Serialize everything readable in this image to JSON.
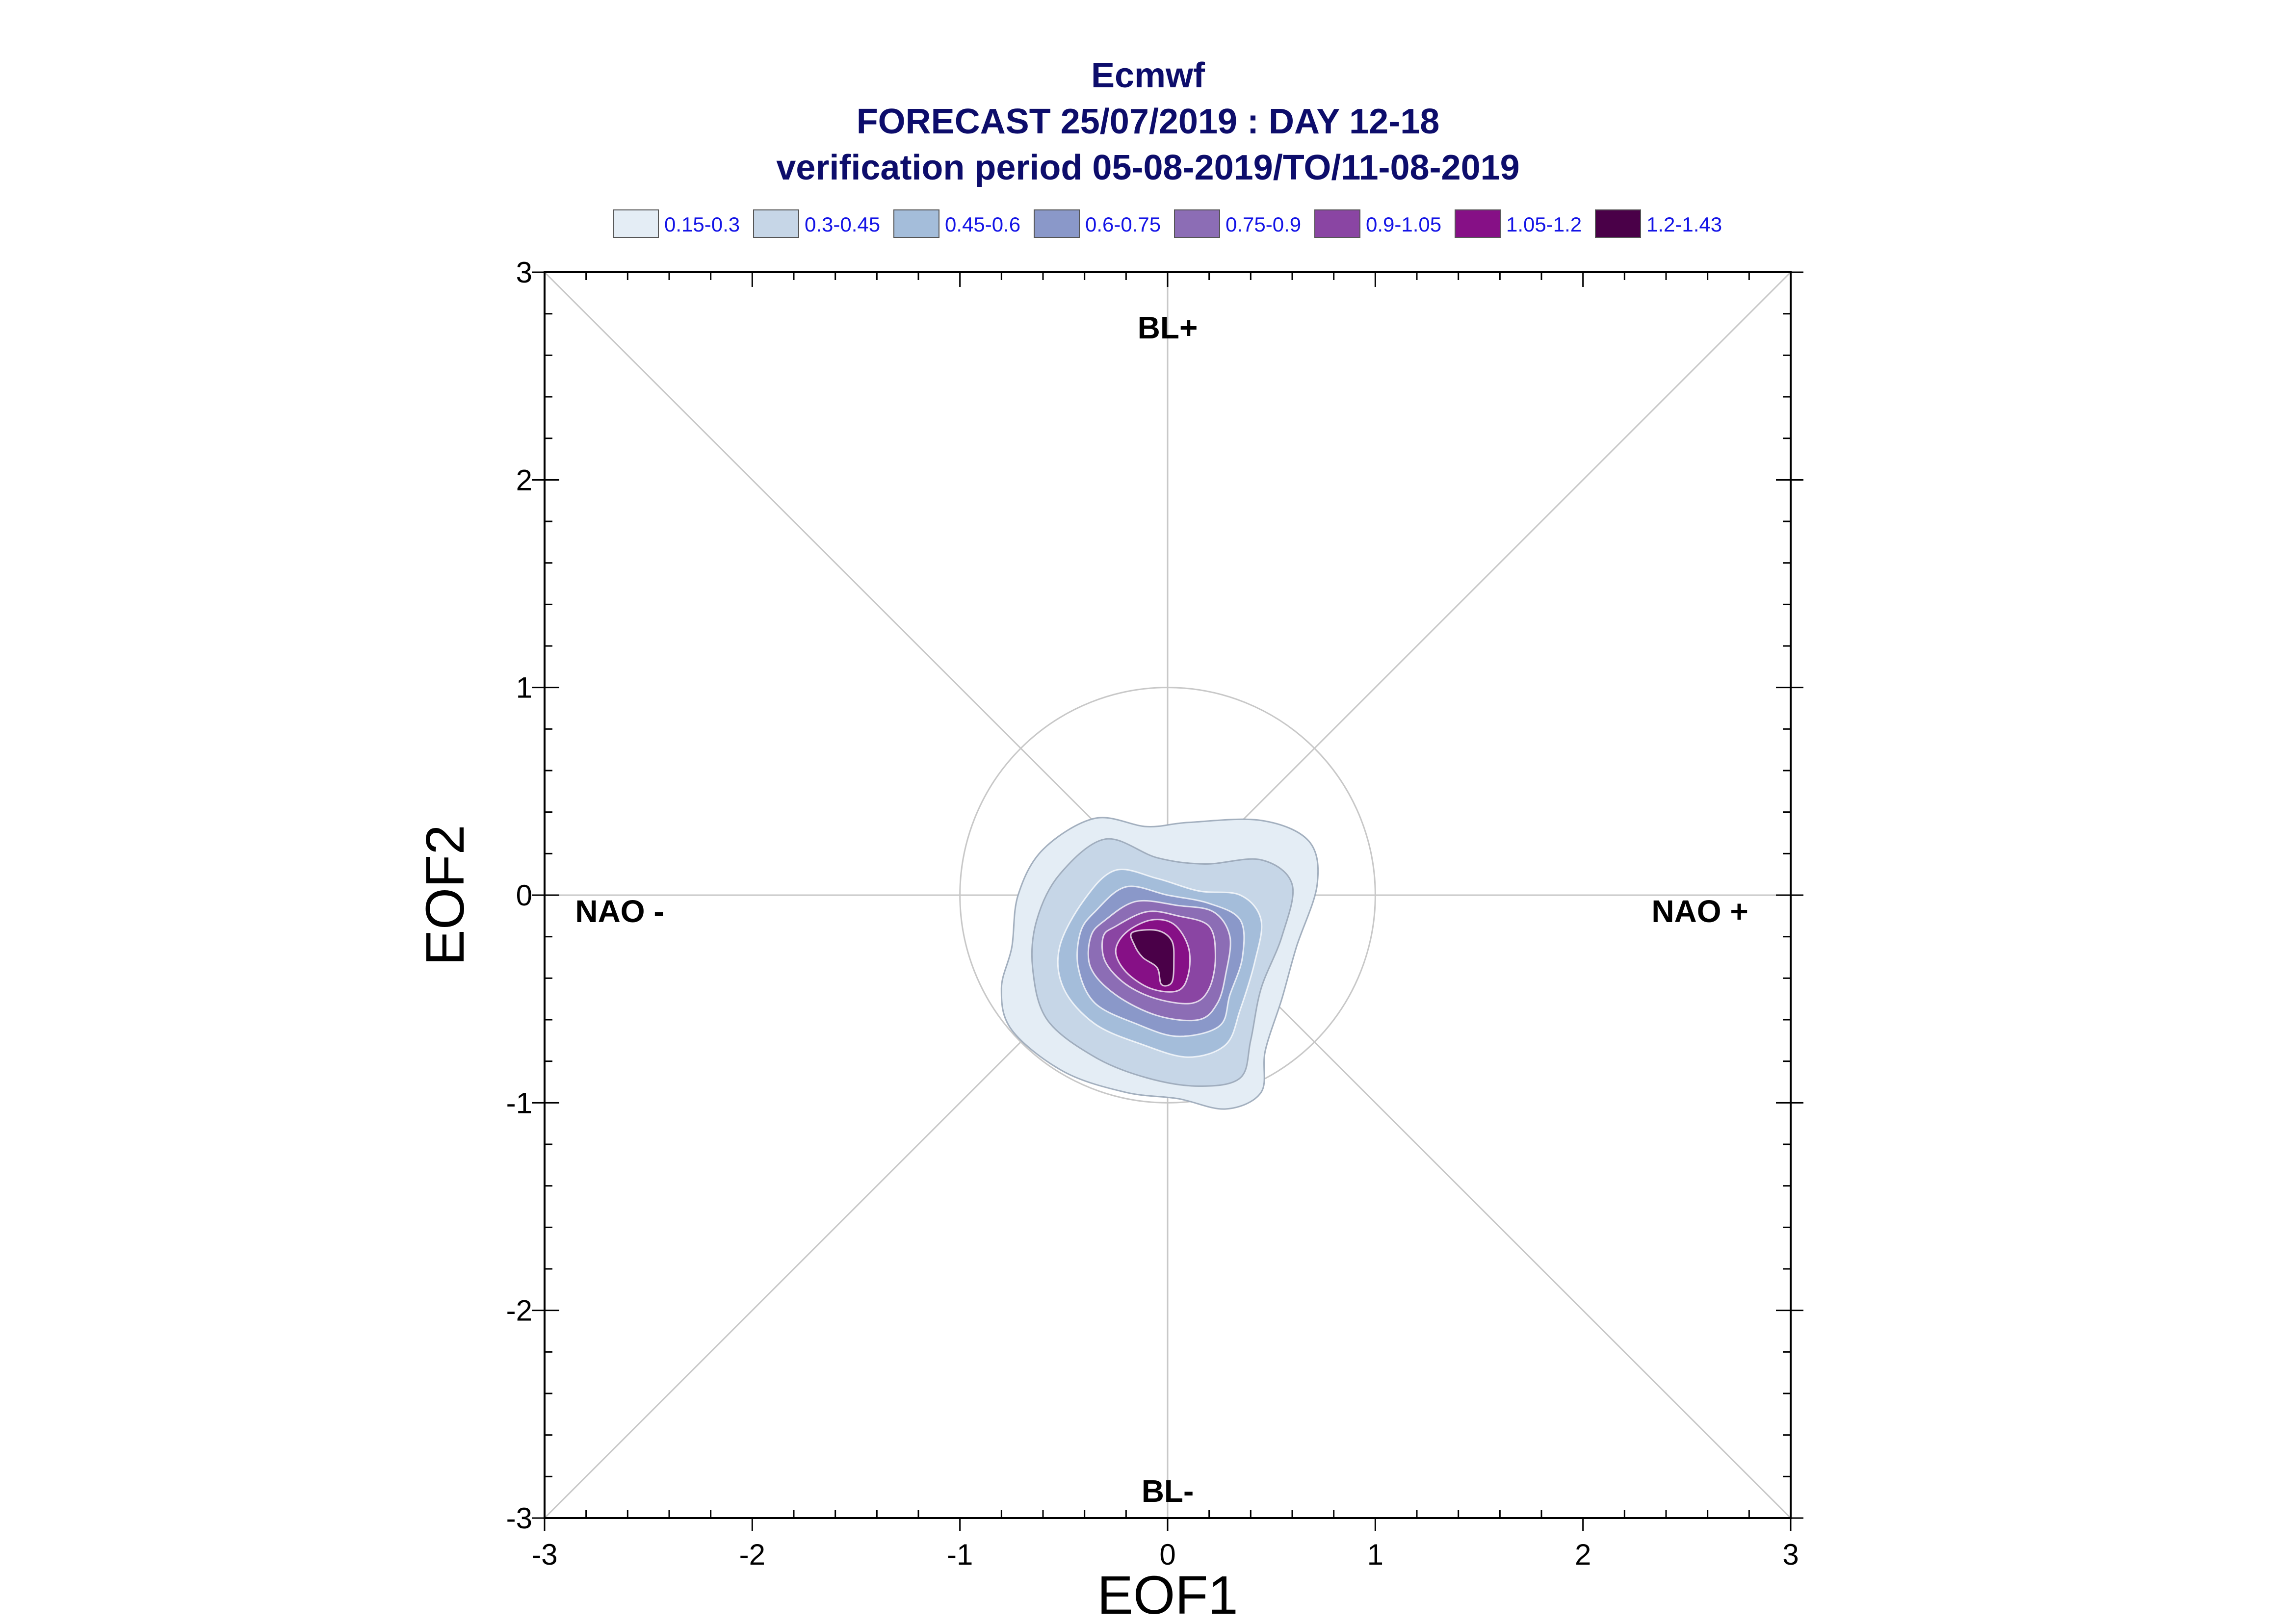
{
  "chart_data": {
    "type": "contour",
    "title": "Ecmwf",
    "subtitle": "FORECAST 25/07/2019 : DAY 12-18",
    "subtitle2": "verification period 05-08-2019/TO/11-08-2019",
    "xlabel": "EOF1",
    "ylabel": "EOF2",
    "xlim": [
      -3,
      3
    ],
    "ylim": [
      -3,
      3
    ],
    "xticks": [
      "-3",
      "-2",
      "-1",
      "0",
      "1",
      "2",
      "3"
    ],
    "yticks": [
      "3",
      "2",
      "1",
      "0",
      "-1",
      "-2",
      "-3"
    ],
    "regimes": {
      "top": "BL+",
      "bottom": "BL-",
      "left": "NAO -",
      "right": "NAO +"
    },
    "unit_circle_radius": 1,
    "legend": [
      {
        "label": "0.15-0.3",
        "color": "#e4edf5"
      },
      {
        "label": "0.3-0.45",
        "color": "#c6d6e7"
      },
      {
        "label": "0.45-0.6",
        "color": "#a4bdda"
      },
      {
        "label": "0.6-0.75",
        "color": "#8a98c9"
      },
      {
        "label": "0.75-0.9",
        "color": "#8c6db5"
      },
      {
        "label": "0.9-1.05",
        "color": "#8a45a3"
      },
      {
        "label": "1.05-1.2",
        "color": "#861086"
      },
      {
        "label": "1.2-1.43",
        "color": "#4a0048"
      }
    ],
    "contours": [
      {
        "level": "0.15-0.3",
        "points": [
          [
            -0.6,
            0.22
          ],
          [
            -0.35,
            0.37
          ],
          [
            -0.1,
            0.33
          ],
          [
            0.1,
            0.35
          ],
          [
            0.45,
            0.36
          ],
          [
            0.68,
            0.26
          ],
          [
            0.72,
            0.05
          ],
          [
            0.62,
            -0.25
          ],
          [
            0.55,
            -0.5
          ],
          [
            0.47,
            -0.75
          ],
          [
            0.45,
            -0.95
          ],
          [
            0.28,
            -1.03
          ],
          [
            0.05,
            -0.98
          ],
          [
            -0.2,
            -0.95
          ],
          [
            -0.5,
            -0.85
          ],
          [
            -0.75,
            -0.65
          ],
          [
            -0.8,
            -0.45
          ],
          [
            -0.75,
            -0.25
          ],
          [
            -0.72,
            0.0
          ]
        ]
      },
      {
        "level": "0.3-0.45",
        "points": [
          [
            -0.52,
            0.1
          ],
          [
            -0.3,
            0.27
          ],
          [
            -0.05,
            0.18
          ],
          [
            0.18,
            0.15
          ],
          [
            0.45,
            0.17
          ],
          [
            0.6,
            0.05
          ],
          [
            0.55,
            -0.2
          ],
          [
            0.45,
            -0.45
          ],
          [
            0.4,
            -0.7
          ],
          [
            0.35,
            -0.88
          ],
          [
            0.15,
            -0.92
          ],
          [
            -0.1,
            -0.88
          ],
          [
            -0.35,
            -0.78
          ],
          [
            -0.58,
            -0.6
          ],
          [
            -0.65,
            -0.35
          ],
          [
            -0.63,
            -0.12
          ]
        ]
      },
      {
        "level": "0.45-0.6",
        "points": [
          [
            -0.4,
            -0.02
          ],
          [
            -0.25,
            0.12
          ],
          [
            -0.05,
            0.08
          ],
          [
            0.15,
            0.02
          ],
          [
            0.35,
            0.0
          ],
          [
            0.45,
            -0.12
          ],
          [
            0.42,
            -0.32
          ],
          [
            0.35,
            -0.55
          ],
          [
            0.28,
            -0.72
          ],
          [
            0.1,
            -0.78
          ],
          [
            -0.12,
            -0.72
          ],
          [
            -0.35,
            -0.62
          ],
          [
            -0.5,
            -0.45
          ],
          [
            -0.52,
            -0.25
          ]
        ]
      },
      {
        "level": "0.6-0.75",
        "points": [
          [
            -0.35,
            -0.08
          ],
          [
            -0.2,
            0.04
          ],
          [
            0.0,
            0.0
          ],
          [
            0.2,
            -0.04
          ],
          [
            0.35,
            -0.12
          ],
          [
            0.36,
            -0.3
          ],
          [
            0.3,
            -0.48
          ],
          [
            0.25,
            -0.63
          ],
          [
            0.05,
            -0.68
          ],
          [
            -0.15,
            -0.62
          ],
          [
            -0.35,
            -0.52
          ],
          [
            -0.43,
            -0.35
          ],
          [
            -0.42,
            -0.18
          ]
        ]
      },
      {
        "level": "0.75-0.9",
        "points": [
          [
            -0.3,
            -0.12
          ],
          [
            -0.15,
            -0.03
          ],
          [
            0.05,
            -0.05
          ],
          [
            0.22,
            -0.08
          ],
          [
            0.3,
            -0.2
          ],
          [
            0.28,
            -0.38
          ],
          [
            0.24,
            -0.52
          ],
          [
            0.15,
            -0.6
          ],
          [
            -0.05,
            -0.58
          ],
          [
            -0.25,
            -0.48
          ],
          [
            -0.37,
            -0.35
          ],
          [
            -0.37,
            -0.2
          ]
        ]
      },
      {
        "level": "0.9-1.05",
        "points": [
          [
            -0.25,
            -0.15
          ],
          [
            -0.1,
            -0.08
          ],
          [
            0.05,
            -0.1
          ],
          [
            0.2,
            -0.15
          ],
          [
            0.23,
            -0.3
          ],
          [
            0.2,
            -0.45
          ],
          [
            0.12,
            -0.52
          ],
          [
            -0.05,
            -0.5
          ],
          [
            -0.2,
            -0.43
          ],
          [
            -0.3,
            -0.32
          ],
          [
            -0.31,
            -0.2
          ]
        ]
      },
      {
        "level": "1.05-1.2",
        "points": [
          [
            -0.2,
            -0.18
          ],
          [
            -0.08,
            -0.12
          ],
          [
            0.03,
            -0.14
          ],
          [
            0.1,
            -0.25
          ],
          [
            0.1,
            -0.38
          ],
          [
            0.05,
            -0.46
          ],
          [
            -0.08,
            -0.45
          ],
          [
            -0.2,
            -0.37
          ],
          [
            -0.25,
            -0.27
          ]
        ]
      },
      {
        "level": "1.2-1.43",
        "points": [
          [
            -0.17,
            -0.18
          ],
          [
            -0.05,
            -0.17
          ],
          [
            0.02,
            -0.22
          ],
          [
            0.03,
            -0.32
          ],
          [
            0.02,
            -0.42
          ],
          [
            -0.03,
            -0.43
          ],
          [
            -0.05,
            -0.35
          ],
          [
            -0.12,
            -0.3
          ],
          [
            -0.16,
            -0.24
          ]
        ]
      }
    ]
  }
}
